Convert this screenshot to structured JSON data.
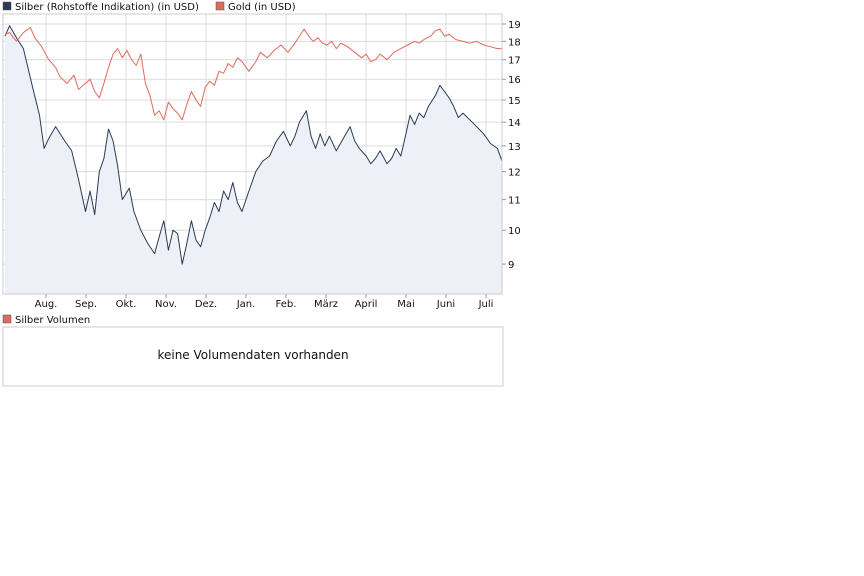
{
  "legend": {
    "silber_label": "Silber (Rohstoffe Indikation) (in USD)",
    "gold_label": "Gold (in USD)",
    "volume_label": "Silber Volumen"
  },
  "volume_panel": {
    "message": "keine Volumendaten vorhanden"
  },
  "colors": {
    "silber": "#2b3a55",
    "gold": "#e06a5c",
    "silber_fill": "#eef0f8",
    "grid": "#dcdcdc",
    "border": "#cccccc"
  },
  "chart_data": {
    "type": "line",
    "x_ticks": [
      "Aug.",
      "Sep.",
      "Okt.",
      "Nov.",
      "Dez.",
      "Jan.",
      "Feb.",
      "März",
      "April",
      "Mai",
      "Juni",
      "Juli"
    ],
    "y_ticks": [
      9,
      10,
      11,
      12,
      13,
      14,
      15,
      16,
      17,
      18,
      19
    ],
    "ylim": [
      8.2,
      19.6
    ],
    "y_scale": "log",
    "grid": true,
    "legend_position": "top-left",
    "series": [
      {
        "name": "Silber (Rohstoffe Indikation) (in USD)",
        "color": "#2b3a55",
        "filled": true,
        "points": [
          [
            0.0,
            18.3
          ],
          [
            0.1,
            18.9
          ],
          [
            0.25,
            18.2
          ],
          [
            0.4,
            17.6
          ],
          [
            0.6,
            15.6
          ],
          [
            0.75,
            14.3
          ],
          [
            0.85,
            12.9
          ],
          [
            0.95,
            13.3
          ],
          [
            1.1,
            13.8
          ],
          [
            1.3,
            13.2
          ],
          [
            1.45,
            12.8
          ],
          [
            1.6,
            11.7
          ],
          [
            1.75,
            10.6
          ],
          [
            1.85,
            11.3
          ],
          [
            1.95,
            10.5
          ],
          [
            2.05,
            12.0
          ],
          [
            2.15,
            12.5
          ],
          [
            2.25,
            13.7
          ],
          [
            2.35,
            13.2
          ],
          [
            2.45,
            12.2
          ],
          [
            2.55,
            11.0
          ],
          [
            2.7,
            11.4
          ],
          [
            2.8,
            10.6
          ],
          [
            2.95,
            10.0
          ],
          [
            3.1,
            9.6
          ],
          [
            3.25,
            9.3
          ],
          [
            3.35,
            9.8
          ],
          [
            3.45,
            10.3
          ],
          [
            3.55,
            9.4
          ],
          [
            3.65,
            10.0
          ],
          [
            3.75,
            9.9
          ],
          [
            3.85,
            9.0
          ],
          [
            3.95,
            9.6
          ],
          [
            4.05,
            10.3
          ],
          [
            4.15,
            9.7
          ],
          [
            4.25,
            9.5
          ],
          [
            4.35,
            10.0
          ],
          [
            4.45,
            10.4
          ],
          [
            4.55,
            10.9
          ],
          [
            4.65,
            10.6
          ],
          [
            4.75,
            11.3
          ],
          [
            4.85,
            11.0
          ],
          [
            4.95,
            11.6
          ],
          [
            5.05,
            10.9
          ],
          [
            5.15,
            10.6
          ],
          [
            5.3,
            11.3
          ],
          [
            5.45,
            12.0
          ],
          [
            5.6,
            12.4
          ],
          [
            5.75,
            12.6
          ],
          [
            5.9,
            13.2
          ],
          [
            6.05,
            13.6
          ],
          [
            6.2,
            13.0
          ],
          [
            6.3,
            13.4
          ],
          [
            6.4,
            14.0
          ],
          [
            6.55,
            14.5
          ],
          [
            6.65,
            13.4
          ],
          [
            6.75,
            12.9
          ],
          [
            6.85,
            13.5
          ],
          [
            6.95,
            13.0
          ],
          [
            7.05,
            13.4
          ],
          [
            7.2,
            12.8
          ],
          [
            7.35,
            13.3
          ],
          [
            7.5,
            13.8
          ],
          [
            7.6,
            13.2
          ],
          [
            7.7,
            12.9
          ],
          [
            7.85,
            12.6
          ],
          [
            7.95,
            12.3
          ],
          [
            8.05,
            12.5
          ],
          [
            8.15,
            12.8
          ],
          [
            8.3,
            12.3
          ],
          [
            8.4,
            12.5
          ],
          [
            8.5,
            12.9
          ],
          [
            8.6,
            12.6
          ],
          [
            8.7,
            13.4
          ],
          [
            8.8,
            14.3
          ],
          [
            8.9,
            13.9
          ],
          [
            9.0,
            14.4
          ],
          [
            9.1,
            14.2
          ],
          [
            9.2,
            14.7
          ],
          [
            9.35,
            15.2
          ],
          [
            9.45,
            15.7
          ],
          [
            9.55,
            15.4
          ],
          [
            9.65,
            15.1
          ],
          [
            9.75,
            14.7
          ],
          [
            9.85,
            14.2
          ],
          [
            9.95,
            14.4
          ],
          [
            10.1,
            14.1
          ],
          [
            10.25,
            13.8
          ],
          [
            10.4,
            13.5
          ],
          [
            10.55,
            13.1
          ],
          [
            10.7,
            12.9
          ],
          [
            10.8,
            12.4
          ]
        ]
      },
      {
        "name": "Gold (in USD)",
        "color": "#e06a5c",
        "filled": false,
        "points": [
          [
            0.0,
            18.4
          ],
          [
            0.1,
            18.5
          ],
          [
            0.25,
            18.0
          ],
          [
            0.4,
            18.5
          ],
          [
            0.55,
            18.8
          ],
          [
            0.65,
            18.2
          ],
          [
            0.8,
            17.7
          ],
          [
            0.95,
            17.0
          ],
          [
            1.1,
            16.6
          ],
          [
            1.2,
            16.1
          ],
          [
            1.35,
            15.8
          ],
          [
            1.5,
            16.2
          ],
          [
            1.6,
            15.5
          ],
          [
            1.75,
            15.8
          ],
          [
            1.85,
            16.0
          ],
          [
            1.95,
            15.4
          ],
          [
            2.05,
            15.1
          ],
          [
            2.15,
            15.8
          ],
          [
            2.25,
            16.6
          ],
          [
            2.35,
            17.3
          ],
          [
            2.45,
            17.6
          ],
          [
            2.55,
            17.1
          ],
          [
            2.65,
            17.5
          ],
          [
            2.75,
            17.0
          ],
          [
            2.85,
            16.7
          ],
          [
            2.95,
            17.3
          ],
          [
            3.05,
            15.8
          ],
          [
            3.15,
            15.2
          ],
          [
            3.25,
            14.3
          ],
          [
            3.35,
            14.5
          ],
          [
            3.45,
            14.1
          ],
          [
            3.55,
            14.9
          ],
          [
            3.65,
            14.6
          ],
          [
            3.75,
            14.4
          ],
          [
            3.85,
            14.1
          ],
          [
            3.95,
            14.8
          ],
          [
            4.05,
            15.4
          ],
          [
            4.15,
            15.0
          ],
          [
            4.25,
            14.7
          ],
          [
            4.35,
            15.6
          ],
          [
            4.45,
            15.9
          ],
          [
            4.55,
            15.7
          ],
          [
            4.65,
            16.4
          ],
          [
            4.75,
            16.3
          ],
          [
            4.85,
            16.8
          ],
          [
            4.95,
            16.6
          ],
          [
            5.05,
            17.1
          ],
          [
            5.15,
            16.9
          ],
          [
            5.3,
            16.4
          ],
          [
            5.45,
            16.9
          ],
          [
            5.55,
            17.4
          ],
          [
            5.7,
            17.1
          ],
          [
            5.85,
            17.5
          ],
          [
            6.0,
            17.8
          ],
          [
            6.15,
            17.4
          ],
          [
            6.3,
            17.9
          ],
          [
            6.4,
            18.3
          ],
          [
            6.5,
            18.7
          ],
          [
            6.6,
            18.3
          ],
          [
            6.7,
            18.0
          ],
          [
            6.8,
            18.2
          ],
          [
            6.9,
            17.9
          ],
          [
            7.0,
            17.8
          ],
          [
            7.1,
            18.0
          ],
          [
            7.2,
            17.6
          ],
          [
            7.3,
            17.9
          ],
          [
            7.45,
            17.7
          ],
          [
            7.6,
            17.4
          ],
          [
            7.75,
            17.1
          ],
          [
            7.85,
            17.3
          ],
          [
            7.95,
            16.9
          ],
          [
            8.05,
            17.0
          ],
          [
            8.15,
            17.3
          ],
          [
            8.3,
            17.0
          ],
          [
            8.45,
            17.4
          ],
          [
            8.6,
            17.6
          ],
          [
            8.75,
            17.8
          ],
          [
            8.9,
            18.0
          ],
          [
            9.0,
            17.9
          ],
          [
            9.1,
            18.1
          ],
          [
            9.25,
            18.3
          ],
          [
            9.35,
            18.6
          ],
          [
            9.45,
            18.7
          ],
          [
            9.55,
            18.3
          ],
          [
            9.65,
            18.4
          ],
          [
            9.8,
            18.1
          ],
          [
            9.95,
            18.0
          ],
          [
            10.1,
            17.9
          ],
          [
            10.25,
            18.0
          ],
          [
            10.4,
            17.8
          ],
          [
            10.55,
            17.7
          ],
          [
            10.7,
            17.6
          ],
          [
            10.8,
            17.6
          ]
        ]
      }
    ]
  }
}
